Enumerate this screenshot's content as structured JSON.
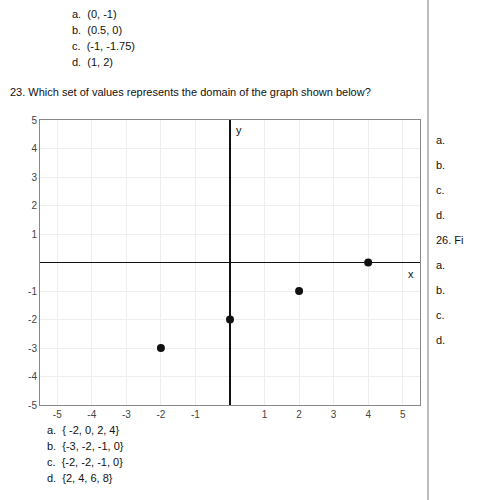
{
  "chart_data": {
    "type": "scatter",
    "title": "23. Which set of values represents the domain of the graph shown below?",
    "x": [
      -2,
      0,
      2,
      4
    ],
    "values": [
      -3,
      -2,
      -1,
      0
    ],
    "color": "#111111",
    "marker": "circle",
    "xlabel": "x",
    "ylabel": "y",
    "xlim": [
      -5.5,
      5.5
    ],
    "ylim": [
      -5,
      5
    ],
    "xticks": [
      -5,
      -4,
      -3,
      -2,
      -1,
      1,
      2,
      3,
      4,
      5
    ],
    "yticks": [
      -5,
      -4,
      -3,
      -2,
      -1,
      1,
      2,
      3,
      4,
      5
    ],
    "grid": true,
    "annotations": [
      [
        "a.  (0, -1)",
        "b.  (0.5, 0)",
        "c.  (-1, -1.75)",
        "d.  (1, 2)"
      ],
      [
        "a.  { -2, 0, 2, 4}",
        "b.  {-3, -2, -1, 0}",
        "c.  {-2, -2, -1, 0}",
        "d.  {2, 4, 6, 8}"
      ],
      [
        "a.",
        "b.",
        "c.",
        "d.",
        "26. Fi",
        "a.",
        "b.",
        "c.",
        "d."
      ]
    ]
  }
}
